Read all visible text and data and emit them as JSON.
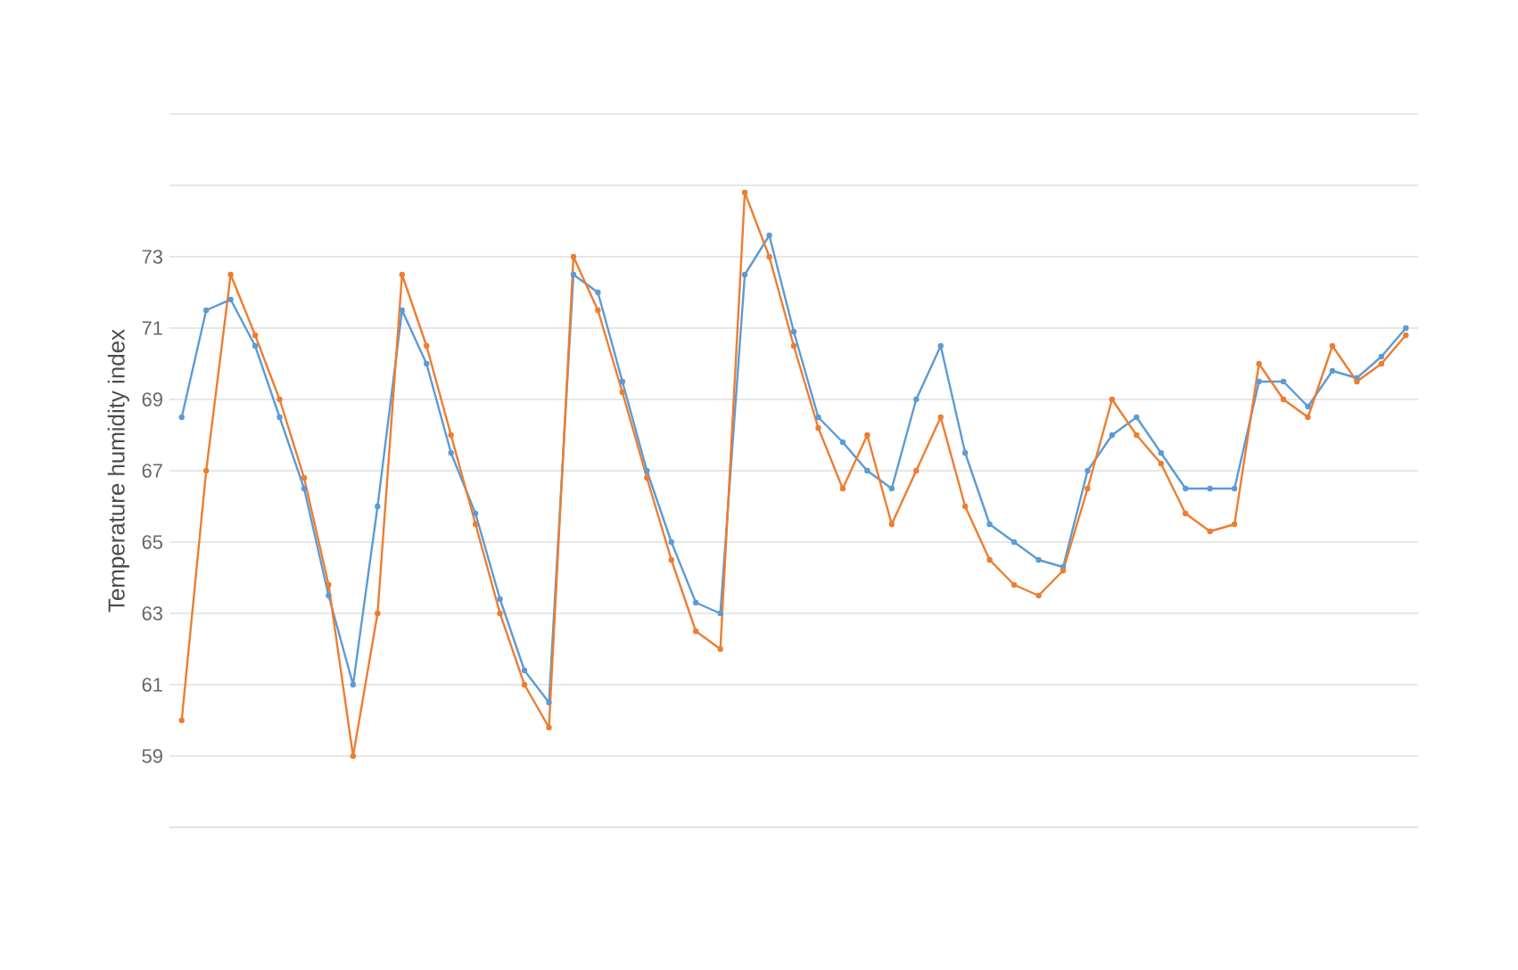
{
  "chart_data": {
    "type": "line",
    "ylabel": "Temperature humidity index",
    "categories": [
      null,
      null,
      null,
      null,
      null,
      null,
      null,
      null,
      null,
      null,
      null,
      null,
      null,
      null,
      null,
      null,
      null,
      null,
      null,
      null,
      null,
      null,
      null,
      null,
      null,
      null,
      null,
      null,
      null,
      null,
      null,
      null,
      null,
      null,
      null,
      null,
      null,
      null,
      null,
      null,
      null,
      null,
      null,
      null,
      null,
      null,
      null,
      null,
      null,
      null,
      null
    ],
    "series": [
      {
        "color": "#5b9bd5",
        "values": [
          68.5,
          71.5,
          71.8,
          70.5,
          68.5,
          66.5,
          63.5,
          61,
          66,
          71.5,
          70,
          67.5,
          65.8,
          63.4,
          61.4,
          60.5,
          72.5,
          72,
          69.5,
          67,
          65,
          63.3,
          63,
          72.5,
          73.6,
          70.9,
          68.5,
          67.8,
          67,
          66.5,
          69,
          70.5,
          67.5,
          65.5,
          65,
          64.5,
          64.3,
          67,
          68,
          68.5,
          67.5,
          66.5,
          66.5,
          66.5,
          69.5,
          69.5,
          68.8,
          69.8,
          69.6,
          70.2,
          71
        ]
      },
      {
        "color": "#ed7d31",
        "values": [
          60,
          67,
          72.5,
          70.8,
          69,
          66.8,
          63.8,
          59,
          63,
          72.5,
          70.5,
          68,
          65.5,
          63,
          61,
          59.8,
          73,
          71.5,
          69.2,
          66.8,
          64.5,
          62.5,
          62,
          74.8,
          73,
          70.5,
          68.2,
          66.5,
          68,
          65.5,
          67,
          68.5,
          66,
          64.5,
          63.8,
          63.5,
          64.2,
          66.5,
          69,
          68,
          67.2,
          65.8,
          65.3,
          65.5,
          70,
          69,
          68.5,
          70.5,
          69.5,
          70,
          70.8
        ]
      }
    ],
    "ylim": [
      57,
      77
    ],
    "yticks": [
      {
        "value": 57,
        "label": null
      },
      59,
      61,
      63,
      65,
      67,
      69,
      71,
      73,
      {
        "value": 75,
        "label": null
      },
      {
        "value": 77,
        "label": null
      }
    ],
    "grid": "y",
    "tick_labels": "y",
    "marker": "circle",
    "line_style": "solid"
  }
}
